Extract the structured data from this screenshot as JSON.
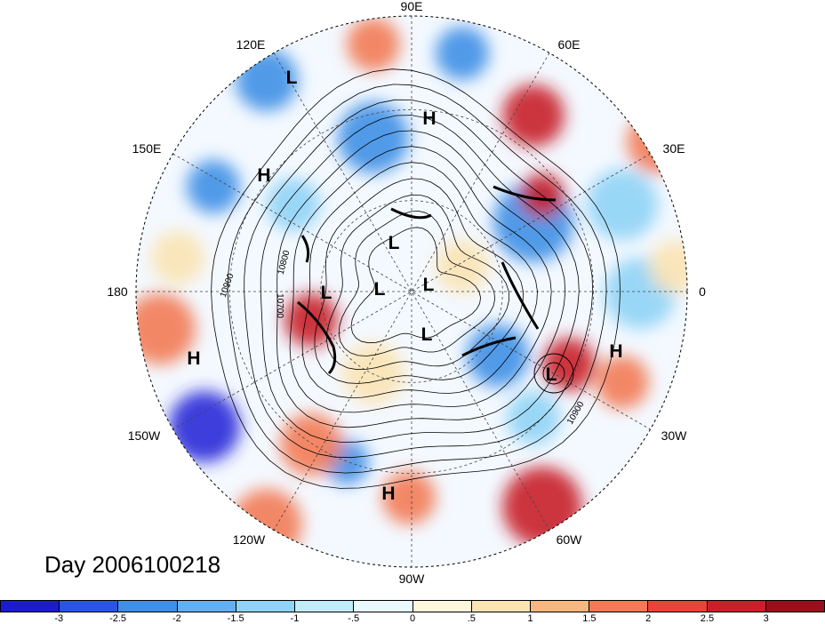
{
  "map": {
    "projection": "north-polar-stereographic",
    "longitude_labels": [
      "90E",
      "60E",
      "30E",
      "0",
      "30W",
      "60W",
      "90W",
      "120W",
      "150W",
      "180",
      "150E",
      "120E"
    ],
    "pressure_centers": [
      {
        "label": "L"
      },
      {
        "label": "H"
      },
      {
        "label": "H"
      },
      {
        "label": "L"
      },
      {
        "label": "L"
      },
      {
        "label": "L"
      },
      {
        "label": "L"
      },
      {
        "label": "L"
      },
      {
        "label": "H"
      },
      {
        "label": "L"
      },
      {
        "label": "H"
      },
      {
        "label": "H"
      }
    ],
    "contour_labels": [
      "10900",
      "10800",
      "10700",
      "10900"
    ],
    "anomaly_colors": {
      "strong_neg": "#2a2ad8",
      "neg": "#3f8fe6",
      "weak_neg": "#8fd3f6",
      "neutral": "#f4f9ff",
      "weak_pos": "#fbe3b4",
      "pos": "#f27a55",
      "strong_pos": "#c8202a"
    }
  },
  "day_label": "Day 2006100218",
  "colorbar": {
    "colors": [
      "#1c1ccc",
      "#2a55e0",
      "#3f8fe6",
      "#62b0f2",
      "#8fd3f6",
      "#c0ecfb",
      "#eaf8ff",
      "#fff8dc",
      "#fbe3b4",
      "#f7b77e",
      "#f27a55",
      "#e84538",
      "#c8202a",
      "#9a0f1c"
    ],
    "ticks": [
      "-3",
      "-2.5",
      "-2",
      "-1.5",
      "-1",
      "-.5",
      "0",
      ".5",
      "1",
      "1.5",
      "2",
      "2.5",
      "3"
    ]
  }
}
